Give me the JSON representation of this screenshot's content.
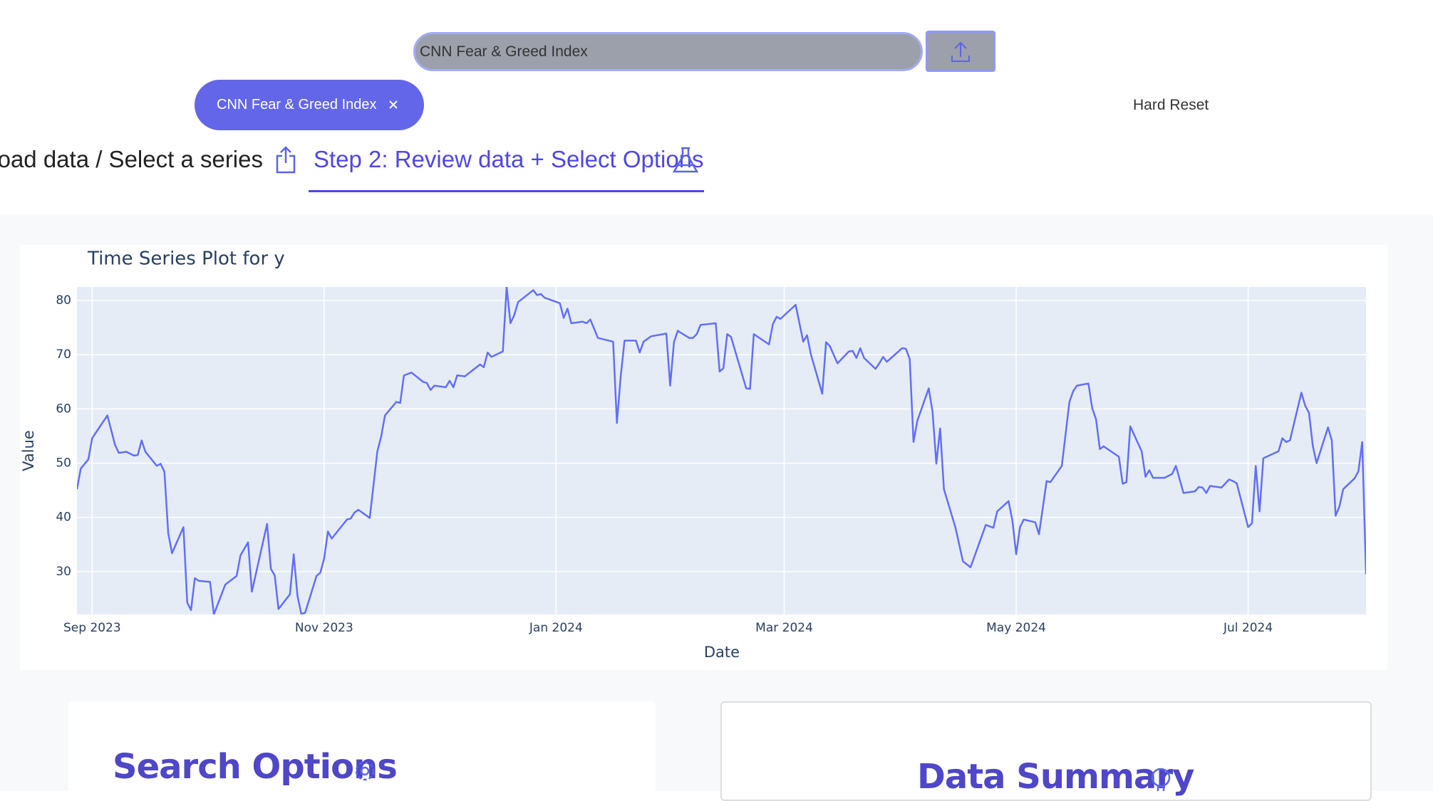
{
  "search": {
    "value": "CNN Fear & Greed Index"
  },
  "selected_chip": "CNN Fear & Greed Index",
  "hard_reset": "Hard Reset",
  "tabs": [
    "Upload data / Select a series",
    "Step 2: Review data + Select Options"
  ],
  "chart_data": {
    "type": "line",
    "title": "Time Series Plot for y",
    "x_label": "Date",
    "y_label": "Value",
    "color": "#636efa",
    "grid": true,
    "xlim": [
      "2023-08-28",
      "2024-08-01"
    ],
    "xticks": [
      {
        "value": "2023-09-01",
        "label": "Sep 2023"
      },
      {
        "value": "2023-11-01",
        "label": "Nov 2023"
      },
      {
        "value": "2024-01-01",
        "label": "Jan 2024"
      },
      {
        "value": "2024-03-01",
        "label": "Mar 2024"
      },
      {
        "value": "2024-05-01",
        "label": "May 2024"
      },
      {
        "value": "2024-07-01",
        "label": "Jul 2024"
      }
    ],
    "ylim": [
      22.1,
      82.5
    ],
    "yticks": [
      30,
      40,
      50,
      60,
      70,
      80
    ],
    "x": [
      "2023-08-28",
      "2023-08-29",
      "2023-08-31",
      "2023-09-01",
      "2023-09-05",
      "2023-09-07",
      "2023-09-08",
      "2023-09-10",
      "2023-09-12",
      "2023-09-13",
      "2023-09-14",
      "2023-09-15",
      "2023-09-18",
      "2023-09-19",
      "2023-09-20",
      "2023-09-21",
      "2023-09-22",
      "2023-09-25",
      "2023-09-26",
      "2023-09-27",
      "2023-09-28",
      "2023-09-29",
      "2023-10-02",
      "2023-10-03",
      "2023-10-06",
      "2023-10-09",
      "2023-10-10",
      "2023-10-12",
      "2023-10-13",
      "2023-10-17",
      "2023-10-18",
      "2023-10-19",
      "2023-10-20",
      "2023-10-23",
      "2023-10-24",
      "2023-10-25",
      "2023-10-26",
      "2023-10-27",
      "2023-10-30",
      "2023-10-31",
      "2023-11-01",
      "2023-11-02",
      "2023-11-03",
      "2023-11-07",
      "2023-11-08",
      "2023-11-09",
      "2023-11-10",
      "2023-11-13",
      "2023-11-15",
      "2023-11-16",
      "2023-11-17",
      "2023-11-20",
      "2023-11-21",
      "2023-11-22",
      "2023-11-24",
      "2023-11-27",
      "2023-11-28",
      "2023-11-29",
      "2023-11-30",
      "2023-12-03",
      "2023-12-04",
      "2023-12-05",
      "2023-12-06",
      "2023-12-08",
      "2023-12-12",
      "2023-12-13",
      "2023-12-14",
      "2023-12-15",
      "2023-12-18",
      "2023-12-19",
      "2023-12-20",
      "2023-12-21",
      "2023-12-22",
      "2023-12-26",
      "2023-12-27",
      "2023-12-28",
      "2023-12-29",
      "2024-01-02",
      "2024-01-03",
      "2024-01-04",
      "2024-01-05",
      "2024-01-08",
      "2024-01-09",
      "2024-01-10",
      "2024-01-12",
      "2024-01-16",
      "2024-01-17",
      "2024-01-18",
      "2024-01-19",
      "2024-01-22",
      "2024-01-23",
      "2024-01-24",
      "2024-01-26",
      "2024-01-30",
      "2024-01-31",
      "2024-02-01",
      "2024-02-02",
      "2024-02-05",
      "2024-02-06",
      "2024-02-07",
      "2024-02-08",
      "2024-02-12",
      "2024-02-13",
      "2024-02-14",
      "2024-02-15",
      "2024-02-16",
      "2024-02-20",
      "2024-02-21",
      "2024-02-22",
      "2024-02-26",
      "2024-02-27",
      "2024-02-28",
      "2024-02-29",
      "2024-03-04",
      "2024-03-06",
      "2024-03-07",
      "2024-03-08",
      "2024-03-11",
      "2024-03-12",
      "2024-03-13",
      "2024-03-15",
      "2024-03-18",
      "2024-03-19",
      "2024-03-20",
      "2024-03-21",
      "2024-03-22",
      "2024-03-25",
      "2024-03-26",
      "2024-03-27",
      "2024-03-28",
      "2024-04-01",
      "2024-04-02",
      "2024-04-03",
      "2024-04-04",
      "2024-04-05",
      "2024-04-08",
      "2024-04-09",
      "2024-04-10",
      "2024-04-11",
      "2024-04-12",
      "2024-04-15",
      "2024-04-17",
      "2024-04-19",
      "2024-04-23",
      "2024-04-25",
      "2024-04-26",
      "2024-04-29",
      "2024-04-30",
      "2024-05-01",
      "2024-05-02",
      "2024-05-03",
      "2024-05-06",
      "2024-05-07",
      "2024-05-09",
      "2024-05-10",
      "2024-05-13",
      "2024-05-15",
      "2024-05-16",
      "2024-05-17",
      "2024-05-20",
      "2024-05-21",
      "2024-05-22",
      "2024-05-23",
      "2024-05-24",
      "2024-05-28",
      "2024-05-29",
      "2024-05-30",
      "2024-05-31",
      "2024-06-03",
      "2024-06-04",
      "2024-06-05",
      "2024-06-06",
      "2024-06-09",
      "2024-06-11",
      "2024-06-12",
      "2024-06-14",
      "2024-06-17",
      "2024-06-18",
      "2024-06-19",
      "2024-06-20",
      "2024-06-21",
      "2024-06-24",
      "2024-06-26",
      "2024-06-27",
      "2024-06-28",
      "2024-07-01",
      "2024-07-02",
      "2024-07-03",
      "2024-07-04",
      "2024-07-05",
      "2024-07-09",
      "2024-07-10",
      "2024-07-11",
      "2024-07-12",
      "2024-07-15",
      "2024-07-16",
      "2024-07-17",
      "2024-07-18",
      "2024-07-19",
      "2024-07-22",
      "2024-07-23",
      "2024-07-24",
      "2024-07-25",
      "2024-07-26",
      "2024-07-29",
      "2024-07-30",
      "2024-07-31",
      "2024-08-01"
    ],
    "values": [
      45.2,
      49,
      50.7,
      54.6,
      58.8,
      53.4,
      51.9,
      52.1,
      51.4,
      51.5,
      54.2,
      52.1,
      49.5,
      49.9,
      48.4,
      37.1,
      33.4,
      38.2,
      24.3,
      22.9,
      28.8,
      28.3,
      28.1,
      22.1,
      27.6,
      29.2,
      33,
      35.4,
      26.3,
      38.8,
      30.5,
      29.3,
      23.1,
      25.8,
      33.2,
      25.5,
      22.2,
      22.4,
      29.2,
      29.8,
      32.4,
      37.4,
      36.1,
      39.6,
      39.8,
      40.9,
      41.4,
      39.9,
      52.2,
      54.9,
      58.8,
      61.3,
      61.1,
      66.2,
      66.7,
      65,
      64.8,
      63.5,
      64.3,
      64,
      65.2,
      64,
      66.2,
      66,
      68.2,
      67.7,
      70.4,
      69.6,
      70.6,
      82.5,
      75.8,
      77.3,
      79.7,
      81.9,
      81,
      81.2,
      80.5,
      79.5,
      76.8,
      78.5,
      75.8,
      76.1,
      75.8,
      76.5,
      73.1,
      72.4,
      57.4,
      66,
      72.6,
      72.6,
      70.4,
      72.4,
      73.4,
      73.9,
      64.3,
      72.3,
      74.4,
      73.1,
      73.1,
      73.8,
      75.5,
      75.8,
      66.9,
      67.5,
      73.8,
      73.3,
      63.8,
      63.7,
      73.8,
      71.9,
      75.6,
      77,
      76.6,
      79.2,
      72.4,
      73.6,
      70.1,
      62.8,
      72.3,
      71.6,
      68.4,
      70.6,
      70.7,
      69.4,
      71.2,
      69.4,
      67.4,
      68.4,
      69.6,
      68.7,
      71.2,
      71.1,
      69.2,
      53.9,
      57.8,
      63.8,
      59.5,
      49.9,
      56.4,
      45.2,
      38.2,
      31.9,
      30.8,
      38.6,
      38.1,
      41.1,
      43,
      39.4,
      33.2,
      38.2,
      39.6,
      39.1,
      36.9,
      46.7,
      46.5,
      49.5,
      61.3,
      63.3,
      64.3,
      64.7,
      60.1,
      58.1,
      52.6,
      53.1,
      51.2,
      46.2,
      46.5,
      56.8,
      52.2,
      47.5,
      48.7,
      47.3,
      47.3,
      48,
      49.5,
      44.5,
      44.8,
      45.6,
      45.5,
      44.5,
      45.8,
      45.5,
      47,
      46.7,
      46.3,
      38.2,
      38.9,
      49.5,
      41.1,
      50.9,
      52.2,
      54.6,
      53.9,
      54.2,
      63,
      60.6,
      59.3,
      53.2,
      50,
      56.6,
      54.2,
      40.3,
      42,
      45.2,
      47.2,
      48.5,
      53.9,
      29.5
    ]
  },
  "cards": [
    {
      "title": "Search Options"
    },
    {
      "title": "Data Summary"
    }
  ]
}
